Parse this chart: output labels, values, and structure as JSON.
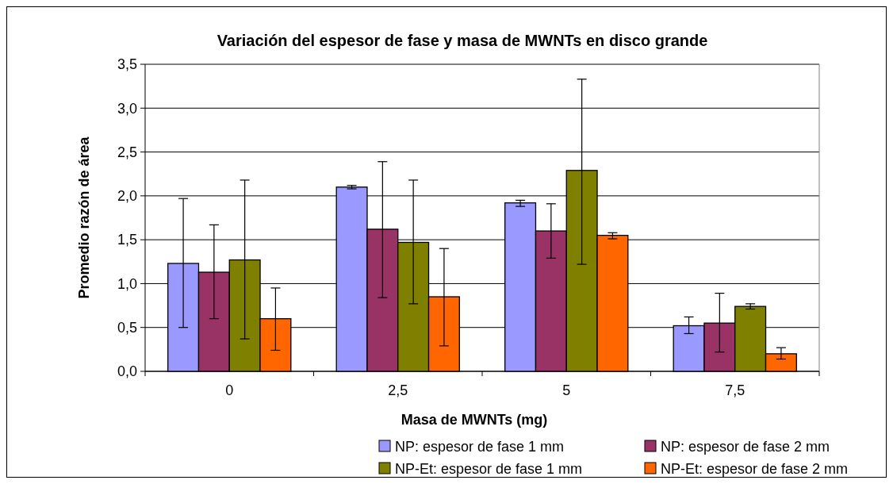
{
  "chart_data": {
    "type": "bar",
    "title": "Variación del espesor de fase y masa de MWNTs en disco grande",
    "xlabel": "Masa de MWNTs (mg)",
    "ylabel": "Promedio razón de área",
    "categories": [
      "0",
      "2,5",
      "5",
      "7,5"
    ],
    "series": [
      {
        "name": "NP: espesor de fase 1 mm",
        "color": "#9999ff",
        "values": [
          1.23,
          2.1,
          1.92,
          0.52
        ],
        "errors": [
          [
            0.5,
            1.97
          ],
          [
            2.08,
            2.12
          ],
          [
            1.88,
            1.95
          ],
          [
            0.43,
            0.62
          ]
        ]
      },
      {
        "name": "NP: espesor de fase 2 mm",
        "color": "#993366",
        "values": [
          1.13,
          1.62,
          1.6,
          0.55
        ],
        "errors": [
          [
            0.6,
            1.67
          ],
          [
            0.84,
            2.39
          ],
          [
            1.29,
            1.91
          ],
          [
            0.22,
            0.89
          ]
        ]
      },
      {
        "name": "NP-Et: espesor de fase 1 mm",
        "color": "#808000",
        "values": [
          1.27,
          1.47,
          2.29,
          0.74
        ],
        "errors": [
          [
            0.37,
            2.18
          ],
          [
            0.77,
            2.18
          ],
          [
            1.22,
            3.33
          ],
          [
            0.71,
            0.77
          ]
        ]
      },
      {
        "name": "NP-Et: espesor de fase 2 mm",
        "color": "#ff6600",
        "values": [
          0.6,
          0.85,
          1.55,
          0.2
        ],
        "errors": [
          [
            0.24,
            0.95
          ],
          [
            0.29,
            1.4
          ],
          [
            1.51,
            1.58
          ],
          [
            0.14,
            0.27
          ]
        ]
      }
    ],
    "ylim": [
      0,
      3.5
    ],
    "yticks": [
      {
        "value": 0,
        "label": "0,0"
      },
      {
        "value": 0.5,
        "label": "0,5"
      },
      {
        "value": 1,
        "label": "1,0"
      },
      {
        "value": 1.5,
        "label": "1,5"
      },
      {
        "value": 2,
        "label": "2,0"
      },
      {
        "value": 2.5,
        "label": "2,5"
      },
      {
        "value": 3,
        "label": "3,0"
      },
      {
        "value": 3.5,
        "label": "3,5"
      }
    ],
    "grid": "y",
    "legend": "bottom"
  }
}
